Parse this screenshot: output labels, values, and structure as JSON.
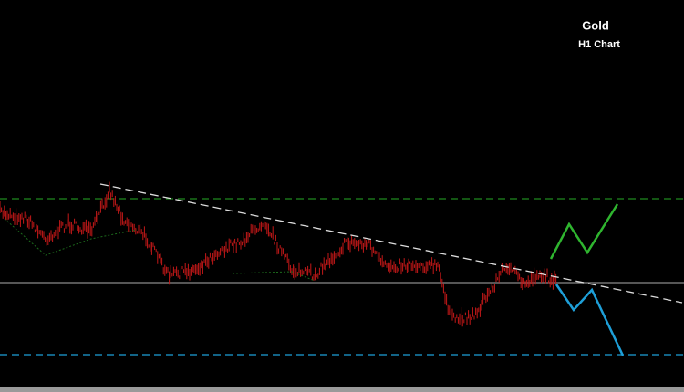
{
  "header": {
    "title": "Gold",
    "subtitle": "H1 Chart"
  }
}
